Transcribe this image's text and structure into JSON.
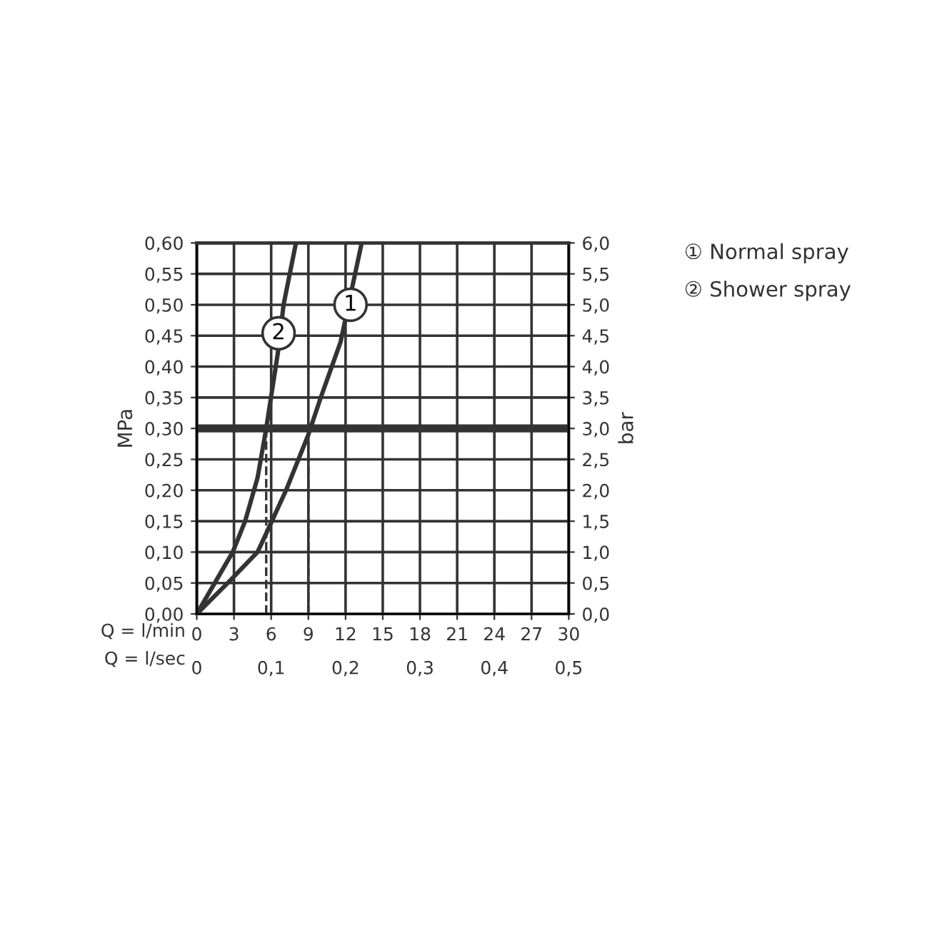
{
  "chart_data": {
    "type": "line",
    "xlabel": "Q = l/min",
    "x2label": "Q = l/sec",
    "ylabel": "MPa",
    "y2label": "bar",
    "xlim": [
      0,
      30
    ],
    "xticks": [
      0,
      3,
      6,
      9,
      12,
      15,
      18,
      21,
      24,
      27,
      30
    ],
    "x2lim": [
      0,
      0.5
    ],
    "x2ticks": [
      0,
      {
        "value": 0.1,
        "label": "0,1"
      },
      {
        "value": 0.2,
        "label": "0,2"
      },
      {
        "value": 0.3,
        "label": "0,3"
      },
      {
        "value": 0.4,
        "label": "0,4"
      },
      {
        "value": 0.5,
        "label": "0,5"
      }
    ],
    "ylim": [
      0,
      0.6
    ],
    "yticks": [
      {
        "value": 0,
        "label": "0,00"
      },
      {
        "value": 0.05,
        "label": "0,05"
      },
      {
        "value": 0.1,
        "label": "0,10"
      },
      {
        "value": 0.15,
        "label": "0,15"
      },
      {
        "value": 0.2,
        "label": "0,20"
      },
      {
        "value": 0.25,
        "label": "0,25"
      },
      {
        "value": 0.3,
        "label": "0,30"
      },
      {
        "value": 0.35,
        "label": "0,35"
      },
      {
        "value": 0.4,
        "label": "0,40"
      },
      {
        "value": 0.45,
        "label": "0,45"
      },
      {
        "value": 0.5,
        "label": "0,50"
      },
      {
        "value": 0.55,
        "label": "0,55"
      },
      {
        "value": 0.6,
        "label": "0,60"
      }
    ],
    "y2lim": [
      0,
      6
    ],
    "y2ticks": [
      {
        "value": 0,
        "label": "0,0"
      },
      {
        "value": 0.5,
        "label": "0,5"
      },
      {
        "value": 1,
        "label": "1,0"
      },
      {
        "value": 1.5,
        "label": "1,5"
      },
      {
        "value": 2,
        "label": "2,0"
      },
      {
        "value": 2.5,
        "label": "2,5"
      },
      {
        "value": 3,
        "label": "3,0"
      },
      {
        "value": 3.5,
        "label": "3,5"
      },
      {
        "value": 4,
        "label": "4,0"
      },
      {
        "value": 4.5,
        "label": "4,5"
      },
      {
        "value": 5,
        "label": "5,0"
      },
      {
        "value": 5.5,
        "label": "5,5"
      },
      {
        "value": 6,
        "label": "6,0"
      }
    ],
    "grid": true,
    "marker": "none",
    "line_style": "solid",
    "series": [
      {
        "color": "#333333",
        "x": [
          0,
          2.5,
          4.9,
          5.6,
          7.2,
          9.0,
          10.0,
          11.6,
          13.3
        ],
        "values": [
          0,
          0.05,
          0.1,
          0.13,
          0.2,
          0.29,
          0.35,
          0.44,
          0.6
        ]
      },
      {
        "color": "#333333",
        "x": [
          0,
          2.9,
          3.9,
          4.9,
          5.6,
          6.6,
          7.0,
          8.0
        ],
        "values": [
          0,
          0.1,
          0.15,
          0.22,
          0.3,
          0.43,
          0.5,
          0.6
        ]
      },
      {
        "color": "#333333",
        "line_style": "dashed",
        "x": [
          5.6,
          5.6
        ],
        "values": [
          0,
          0.3
        ]
      },
      {
        "color": "#333333",
        "line_style": "dashed",
        "x": [
          9.0,
          9.0
        ],
        "values": [
          0,
          0.3
        ]
      }
    ],
    "ref_lines": [
      {
        "axis": "y",
        "value": 0.3,
        "color": "#333333"
      }
    ],
    "annotations": [
      {
        "text": "1",
        "x": 12.4,
        "y": 0.5
      },
      {
        "text": "2",
        "x": 6.6,
        "y": 0.454
      },
      "① Normal spray",
      "② Shower spray"
    ]
  }
}
